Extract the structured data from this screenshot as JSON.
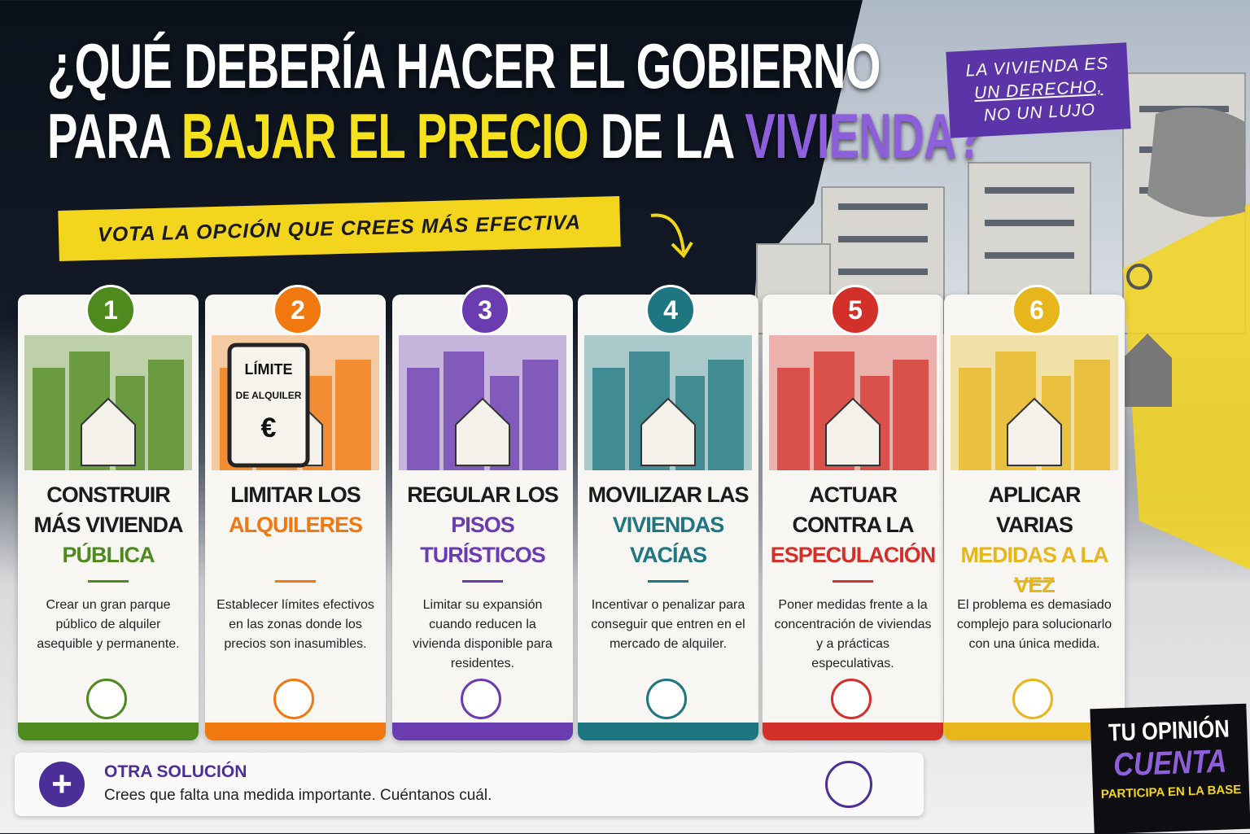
{
  "header": {
    "title_line1": "¿QUÉ DEBERÍA HACER EL GOBIERNO",
    "title_line2": [
      "PARA",
      "BAJAR EL PRECIO",
      "DE LA",
      "VIVIENDA?"
    ],
    "subtitle": "VOTA LA OPCIÓN QUE CREES MÁS EFECTIVA",
    "badge": [
      "LA VIVIENDA ES",
      "UN DERECHO,",
      "NO UN LUJO"
    ]
  },
  "options": [
    {
      "number": "1",
      "title": "CONSTRUIR MÁS VIVIENDA",
      "highlight": "PÚBLICA",
      "color": "#4f8a1f",
      "description": "Crear un gran parque público de alquiler asequible y permanente."
    },
    {
      "number": "2",
      "title": "LIMITAR LOS",
      "highlight": "ALQUILERES",
      "color": "#f0780f",
      "description": "Establecer límites efectivos en las zonas donde los precios son inasumibles.",
      "illustration_text": [
        "LÍMITE",
        "DE ALQUILER",
        "€"
      ]
    },
    {
      "number": "3",
      "title": "REGULAR LOS",
      "highlight": "PISOS TURÍSTICOS",
      "color": "#6a3cb0",
      "description": "Limitar su expansión cuando reducen la vivienda disponible para residentes."
    },
    {
      "number": "4",
      "title": "MOVILIZAR LAS",
      "highlight": "VIVIENDAS VACÍAS",
      "color": "#1e7680",
      "description": "Incentivar o penalizar para conseguir que entren en el mercado de alquiler."
    },
    {
      "number": "5",
      "title": "ACTUAR CONTRA LA",
      "highlight": "ESPECULACIÓN",
      "color": "#d4302a",
      "description": "Poner medidas frente a la concentración de viviendas y a prácticas especulativas."
    },
    {
      "number": "6",
      "title": "APLICAR VARIAS",
      "highlight": "MEDIDAS A LA VEZ",
      "color": "#e6b61c",
      "description": "El problema es demasiado complejo para solucionarlo con una única medida."
    }
  ],
  "other": {
    "title": "OTRA SOLUCIÓN",
    "description": "Crees que falta una medida importante. Cuéntanos cuál.",
    "color": "#4b2e98"
  },
  "footer": {
    "line1": "TU OPINIÓN",
    "line2": "CUENTA",
    "line3": "PARTICIPA EN LA BASE"
  }
}
